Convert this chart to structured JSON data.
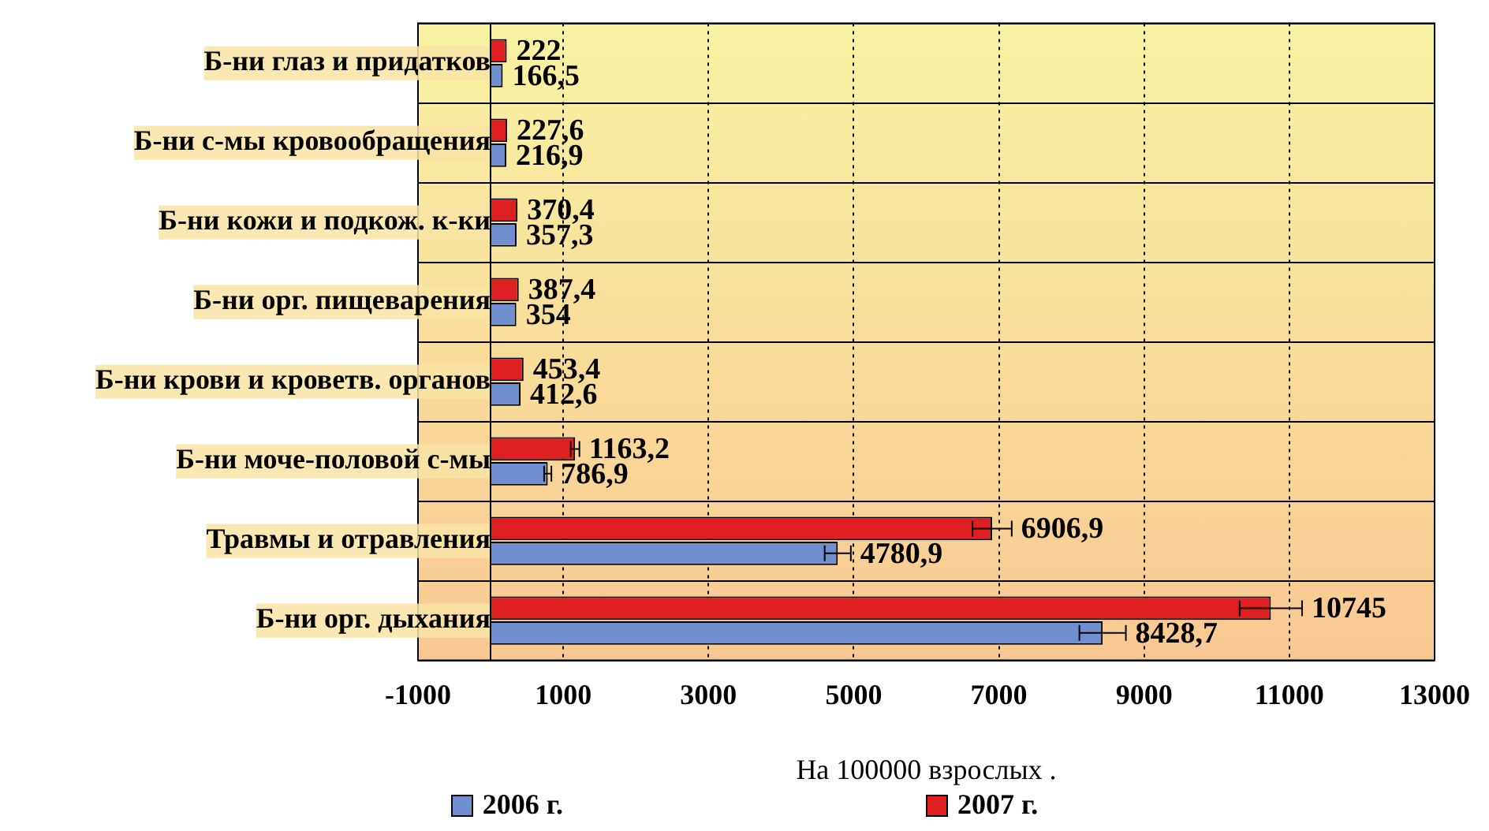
{
  "chart_data": {
    "type": "bar",
    "orientation": "horizontal",
    "xlabel": "На 100000 взрослых .",
    "categories": [
      "Б-ни глаз и придатков",
      "Б-ни с-мы кровообращения",
      "Б-ни кожи и подкож. к-ки",
      "Б-ни орг. пищеварения",
      "Б-ни крови и кроветв. органов",
      "Б-ни моче-половой с-мы",
      "Травмы и отравления",
      "Б-ни орг. дыхания"
    ],
    "series": [
      {
        "name": "2006 г.",
        "color": "#6f8fd0",
        "values": [
          166.5,
          216.9,
          357.3,
          354,
          412.6,
          786.9,
          4780.9,
          8428.7
        ],
        "value_labels": [
          "166,5",
          "216,9",
          "357,3",
          "354",
          "412,6",
          "786,9",
          "4780,9",
          "8428,7"
        ],
        "errors": [
          null,
          null,
          null,
          null,
          null,
          50,
          180,
          320
        ]
      },
      {
        "name": "2007 г.",
        "color": "#e02020",
        "values": [
          222,
          227.6,
          370.4,
          387.4,
          453.4,
          1163.2,
          6906.9,
          10745
        ],
        "value_labels": [
          "222",
          "227,6",
          "370,4",
          "387,4",
          "453,4",
          "1163,2",
          "6906,9",
          "10745"
        ],
        "errors": [
          null,
          null,
          null,
          null,
          null,
          60,
          270,
          430
        ]
      }
    ],
    "xlim": [
      -1000,
      13000
    ],
    "xticks": [
      -1000,
      1000,
      3000,
      5000,
      7000,
      9000,
      11000,
      13000
    ],
    "grid": true,
    "legend": "bottom"
  }
}
